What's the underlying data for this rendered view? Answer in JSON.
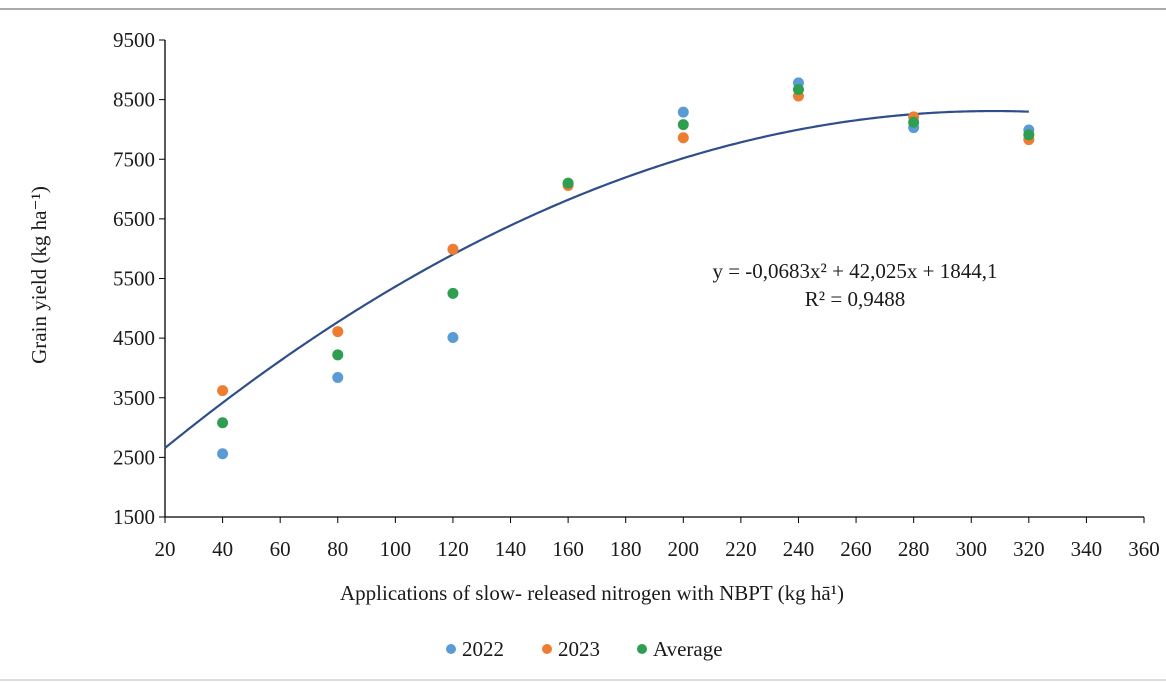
{
  "chart_data": {
    "type": "scatter",
    "title": "",
    "xlabel": "Applications of slow- released nitrogen with NBPT (kg hā¹)",
    "ylabel": "Grain yield (kg ha⁻¹)",
    "xlim": [
      20,
      360
    ],
    "ylim": [
      1500,
      9500
    ],
    "xticks": [
      20,
      40,
      60,
      80,
      100,
      120,
      140,
      160,
      180,
      200,
      220,
      240,
      260,
      280,
      300,
      320,
      340,
      360
    ],
    "yticks": [
      1500,
      2500,
      3500,
      4500,
      5500,
      6500,
      7500,
      8500,
      9500
    ],
    "grid": false,
    "legend_position": "bottom",
    "series": [
      {
        "name": "2022",
        "color": "#5b9bd5",
        "x": [
          40,
          80,
          120,
          160,
          200,
          240,
          280,
          320
        ],
        "y": [
          2560,
          3840,
          4510,
          7090,
          8290,
          8780,
          8030,
          7990
        ]
      },
      {
        "name": "2023",
        "color": "#ed7d31",
        "x": [
          40,
          80,
          120,
          160,
          200,
          240,
          280,
          320
        ],
        "y": [
          3620,
          4610,
          5990,
          7060,
          7860,
          8560,
          8210,
          7830
        ]
      },
      {
        "name": "Average",
        "color": "#2e9e50",
        "x": [
          40,
          80,
          120,
          160,
          200,
          240,
          280,
          320
        ],
        "y": [
          3080,
          4220,
          5250,
          7100,
          8080,
          8670,
          8120,
          7910
        ]
      }
    ],
    "trendline": {
      "type": "polynomial",
      "color": "#2f4f8a",
      "coefficients": {
        "a": -0.0683,
        "b": 42.025,
        "c": 1844.1
      },
      "equation_label": "y = -0,0683x² + 42,025x + 1844,1",
      "r2_label": "R² = 0,9488"
    }
  }
}
